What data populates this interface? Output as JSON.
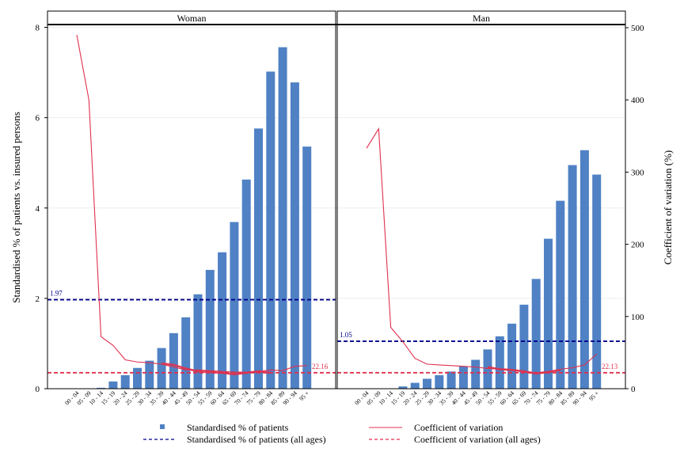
{
  "chart_data": {
    "type": "bar",
    "ylabel": "Standardised % of patients vs. insured persons",
    "y2label": "Coefficient of variation (%)",
    "ylim": [
      0,
      8
    ],
    "yticks": [
      0,
      2,
      4,
      6,
      8
    ],
    "y2lim": [
      0,
      500
    ],
    "y2ticks": [
      0,
      100,
      200,
      300,
      400,
      500
    ],
    "categories": [
      "00 - 04",
      "05 - 09",
      "10 - 14",
      "15 - 19",
      "20 - 24",
      "25 - 29",
      "30 - 34",
      "35 - 39",
      "40 - 44",
      "45 - 49",
      "50 - 54",
      "55 - 59",
      "60 - 64",
      "65 - 69",
      "70 - 74",
      "75 - 79",
      "80 - 84",
      "85 - 89",
      "90 - 94",
      "95 +"
    ],
    "panels": [
      {
        "title": "Woman",
        "bars": [
          0,
          0,
          0.02,
          0.16,
          0.3,
          0.46,
          0.62,
          0.9,
          1.23,
          1.58,
          2.09,
          2.63,
          3.02,
          3.69,
          4.63,
          5.76,
          7.02,
          7.56,
          6.78,
          5.36
        ],
        "cv": [
          490,
          400,
          72,
          60,
          40,
          37,
          36,
          34,
          30,
          26,
          26,
          25,
          24,
          23,
          23,
          24,
          26,
          25,
          31,
          32
        ],
        "cv_band": [
          null,
          null,
          null,
          null,
          null,
          null,
          null,
          35,
          33,
          28,
          24,
          23,
          22,
          20,
          22,
          24,
          22,
          null,
          null,
          null
        ],
        "ref_pct": 1.97,
        "ref_pct_label": "1.97",
        "ref_cv": 22.16,
        "ref_cv_label": "22.16"
      },
      {
        "title": "Man",
        "bars": [
          0,
          0,
          0,
          0.05,
          0.13,
          0.22,
          0.3,
          0.38,
          0.49,
          0.64,
          0.87,
          1.16,
          1.44,
          1.86,
          2.43,
          3.32,
          4.16,
          4.95,
          5.28,
          4.74
        ],
        "cv": [
          333,
          360,
          85,
          65,
          42,
          34,
          33,
          32,
          31,
          30,
          28,
          27,
          26,
          24,
          22,
          24,
          27,
          29,
          33,
          48
        ],
        "cv_band": [
          null,
          null,
          null,
          null,
          null,
          null,
          null,
          null,
          null,
          null,
          30,
          27,
          26,
          24,
          21,
          23,
          26,
          null,
          null,
          null
        ],
        "ref_pct": 1.05,
        "ref_pct_label": "1.05",
        "ref_cv": 22.13,
        "ref_cv_label": "22.13"
      }
    ],
    "legend": {
      "bars": "Standardised % of patients",
      "cv": "Coefficient of variation",
      "ref_pct": "Standardised % of patients (all ages)",
      "ref_cv": "Coefficient of variation (all ages)"
    },
    "colors": {
      "bar": "#4f81c4",
      "cv": "#e0304e",
      "ref_pct": "#00008b",
      "ref_cv": "#e0304e",
      "grid": "#eeeeee"
    }
  }
}
